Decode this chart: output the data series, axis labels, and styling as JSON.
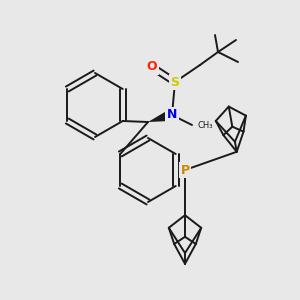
{
  "background_color": "#e8e8e8",
  "bond_color": "#1a1a1a",
  "atom_colors": {
    "N": "#0000ee",
    "S": "#cccc00",
    "O": "#ff2200",
    "P": "#cc8800"
  },
  "line_width": 1.4,
  "figsize": [
    3.0,
    3.0
  ],
  "dpi": 100
}
